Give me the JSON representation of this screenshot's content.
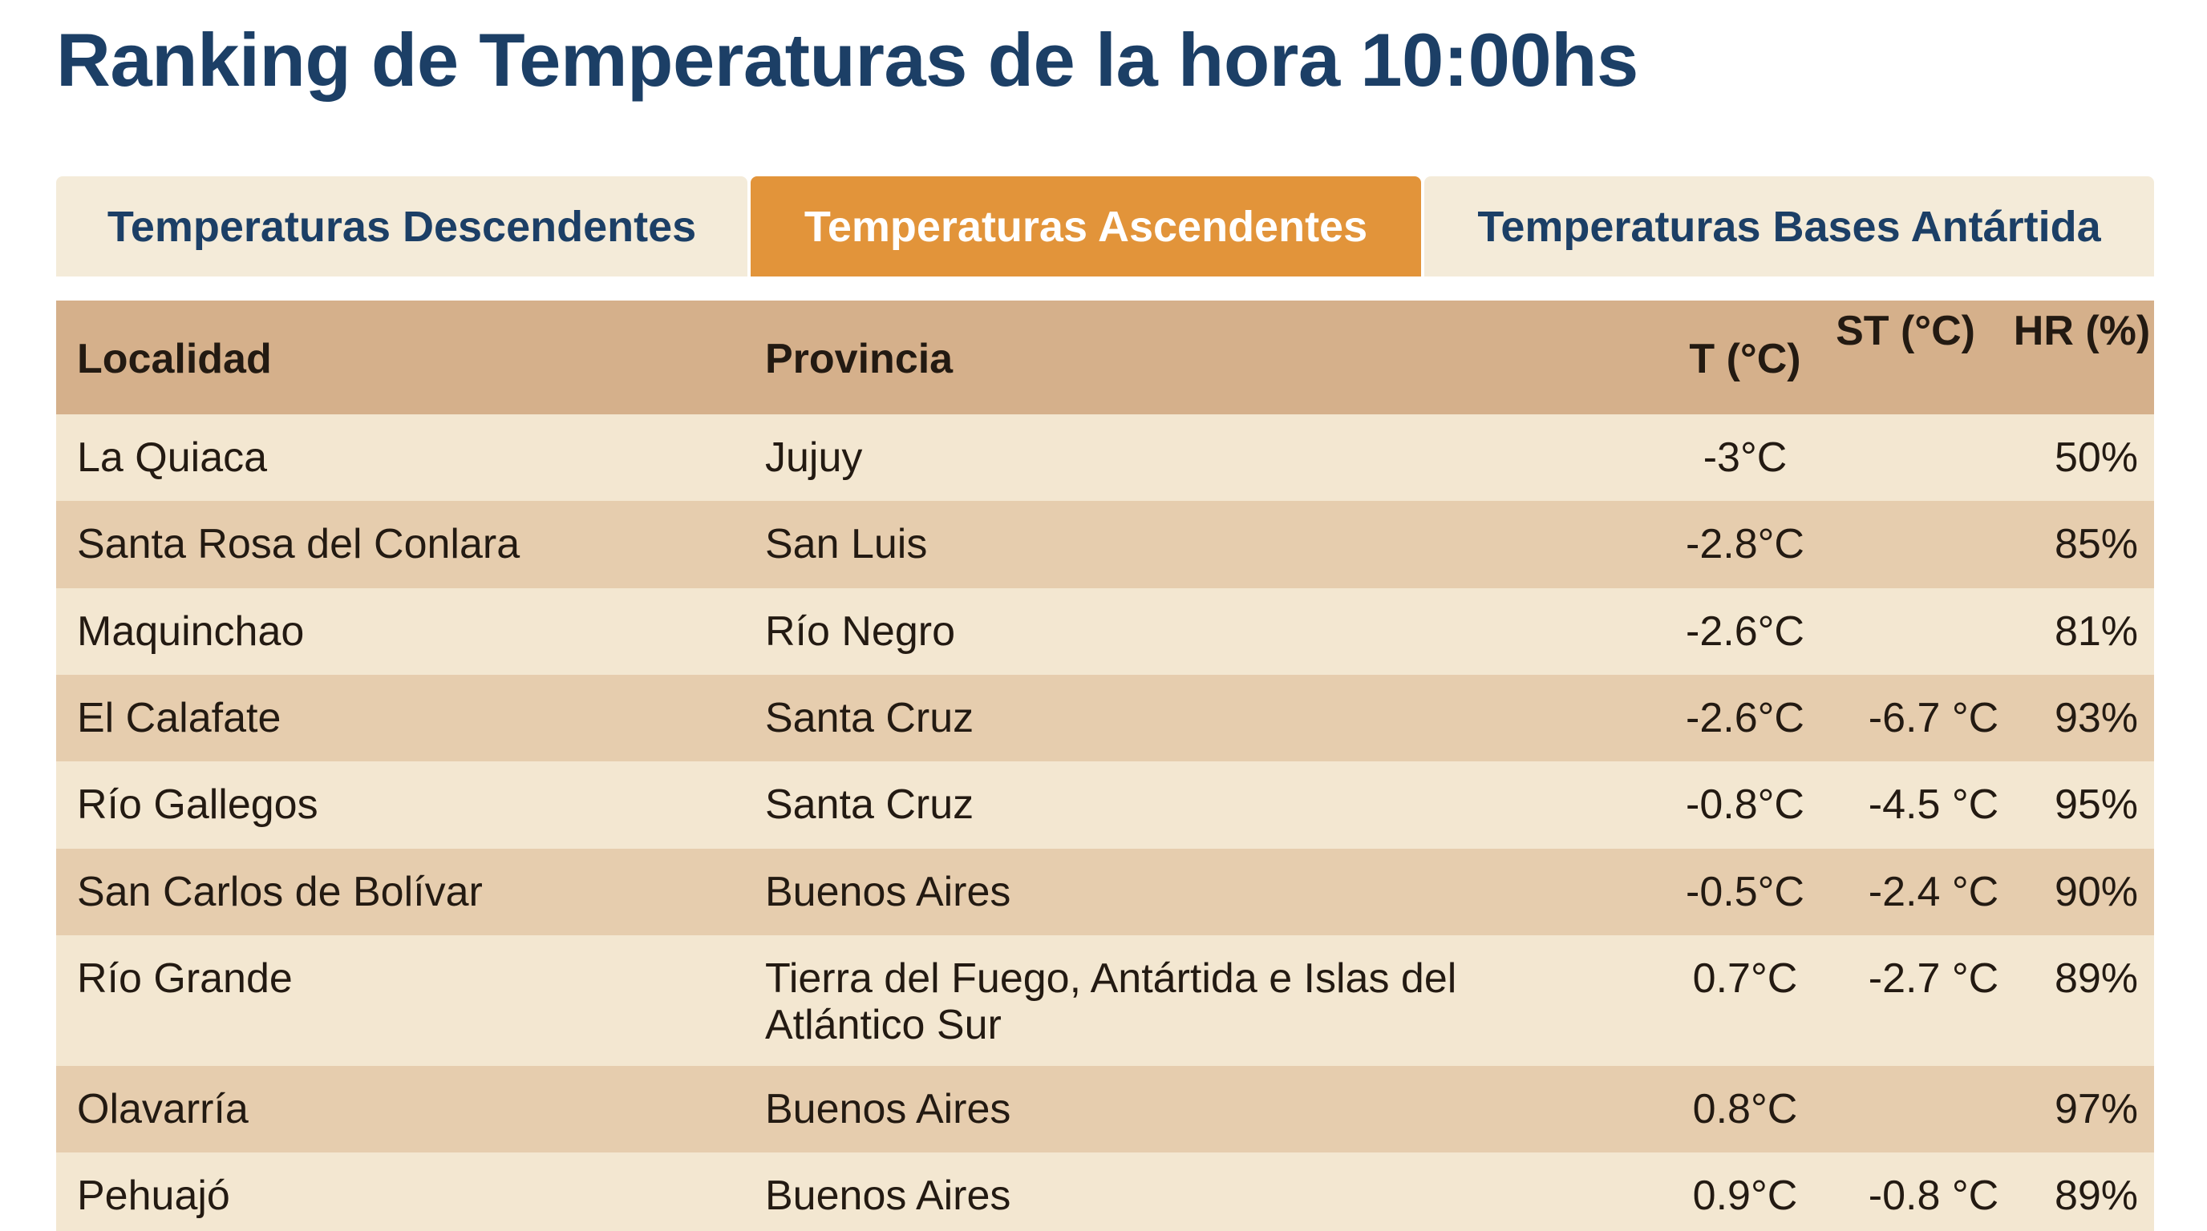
{
  "title": "Ranking de Temperaturas de la hora 10:00hs",
  "tabs": [
    {
      "label": "Temperaturas Descendentes",
      "active": false
    },
    {
      "label": "Temperaturas Ascendentes",
      "active": true
    },
    {
      "label": "Temperaturas Bases Antártida",
      "active": false
    }
  ],
  "colors": {
    "title": "#1c3f66",
    "tab_active": "#e2943a",
    "tab_inactive": "#f4ebd9",
    "header_bg": "#d5b08b",
    "row_light": "#f3e7d1",
    "row_dark": "#e6cdae"
  },
  "table": {
    "headers": {
      "localidad": "Localidad",
      "provincia": "Provincia",
      "t": "T (°C)",
      "st": "ST (°C)",
      "hr": "HR (%)"
    },
    "rows": [
      {
        "localidad": "La Quiaca",
        "provincia": "Jujuy",
        "t": "-3°C",
        "st": "",
        "hr": "50%"
      },
      {
        "localidad": "Santa Rosa del Conlara",
        "provincia": "San Luis",
        "t": "-2.8°C",
        "st": "",
        "hr": "85%"
      },
      {
        "localidad": "Maquinchao",
        "provincia": "Río Negro",
        "t": "-2.6°C",
        "st": "",
        "hr": "81%"
      },
      {
        "localidad": "El Calafate",
        "provincia": "Santa Cruz",
        "t": "-2.6°C",
        "st": "-6.7 °C",
        "hr": "93%"
      },
      {
        "localidad": "Río Gallegos",
        "provincia": "Santa Cruz",
        "t": "-0.8°C",
        "st": "-4.5 °C",
        "hr": "95%"
      },
      {
        "localidad": "San Carlos de Bolívar",
        "provincia": "Buenos Aires",
        "t": "-0.5°C",
        "st": "-2.4 °C",
        "hr": "90%"
      },
      {
        "localidad": "Río Grande",
        "provincia": "Tierra del Fuego, Antártida e Islas del Atlántico Sur",
        "t": "0.7°C",
        "st": "-2.7 °C",
        "hr": "89%"
      },
      {
        "localidad": "Olavarría",
        "provincia": "Buenos Aires",
        "t": "0.8°C",
        "st": "",
        "hr": "97%"
      },
      {
        "localidad": "Pehuajó",
        "provincia": "Buenos Aires",
        "t": "0.9°C",
        "st": "-0.8 °C",
        "hr": "89%"
      }
    ]
  }
}
